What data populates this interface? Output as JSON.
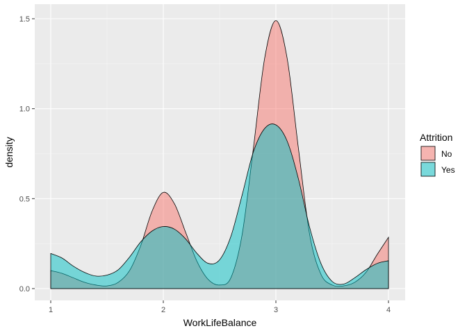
{
  "chart_data": {
    "type": "area",
    "xlabel": "WorkLifeBalance",
    "ylabel": "density",
    "xlim": [
      1,
      4
    ],
    "ylim": [
      0,
      1.5
    ],
    "x_ticks": [
      1,
      2,
      3,
      4
    ],
    "x_tick_labels": [
      "1",
      "2",
      "3",
      "4"
    ],
    "y_ticks": [
      0,
      0.5,
      1.0,
      1.5
    ],
    "y_tick_labels": [
      "0.0",
      "0.5",
      "1.0",
      "1.5"
    ],
    "grid": true,
    "background": "#EBEBEB",
    "legend": {
      "title": "Attrition",
      "position": "right"
    },
    "series": [
      {
        "name": "No",
        "color": "#F8766D",
        "points": [
          [
            1.0,
            0.1
          ],
          [
            1.1,
            0.085
          ],
          [
            1.2,
            0.06
          ],
          [
            1.3,
            0.035
          ],
          [
            1.4,
            0.02
          ],
          [
            1.5,
            0.015
          ],
          [
            1.6,
            0.035
          ],
          [
            1.7,
            0.1
          ],
          [
            1.8,
            0.24
          ],
          [
            1.9,
            0.43
          ],
          [
            2.0,
            0.535
          ],
          [
            2.1,
            0.47
          ],
          [
            2.2,
            0.31
          ],
          [
            2.3,
            0.15
          ],
          [
            2.4,
            0.05
          ],
          [
            2.5,
            0.02
          ],
          [
            2.6,
            0.06
          ],
          [
            2.7,
            0.3
          ],
          [
            2.8,
            0.78
          ],
          [
            2.9,
            1.28
          ],
          [
            3.0,
            1.49
          ],
          [
            3.1,
            1.28
          ],
          [
            3.2,
            0.78
          ],
          [
            3.3,
            0.3
          ],
          [
            3.4,
            0.08
          ],
          [
            3.5,
            0.02
          ],
          [
            3.6,
            0.015
          ],
          [
            3.7,
            0.035
          ],
          [
            3.8,
            0.09
          ],
          [
            3.9,
            0.19
          ],
          [
            4.0,
            0.285
          ]
        ]
      },
      {
        "name": "Yes",
        "color": "#00BFC4",
        "points": [
          [
            1.0,
            0.195
          ],
          [
            1.1,
            0.17
          ],
          [
            1.2,
            0.125
          ],
          [
            1.3,
            0.09
          ],
          [
            1.4,
            0.07
          ],
          [
            1.5,
            0.075
          ],
          [
            1.6,
            0.105
          ],
          [
            1.7,
            0.175
          ],
          [
            1.8,
            0.26
          ],
          [
            1.9,
            0.32
          ],
          [
            2.0,
            0.345
          ],
          [
            2.1,
            0.33
          ],
          [
            2.2,
            0.275
          ],
          [
            2.3,
            0.195
          ],
          [
            2.4,
            0.14
          ],
          [
            2.5,
            0.16
          ],
          [
            2.6,
            0.29
          ],
          [
            2.7,
            0.52
          ],
          [
            2.8,
            0.76
          ],
          [
            2.9,
            0.89
          ],
          [
            3.0,
            0.91
          ],
          [
            3.1,
            0.82
          ],
          [
            3.2,
            0.61
          ],
          [
            3.3,
            0.34
          ],
          [
            3.4,
            0.14
          ],
          [
            3.5,
            0.04
          ],
          [
            3.6,
            0.025
          ],
          [
            3.7,
            0.06
          ],
          [
            3.8,
            0.105
          ],
          [
            3.9,
            0.14
          ],
          [
            4.0,
            0.155
          ]
        ]
      }
    ]
  }
}
